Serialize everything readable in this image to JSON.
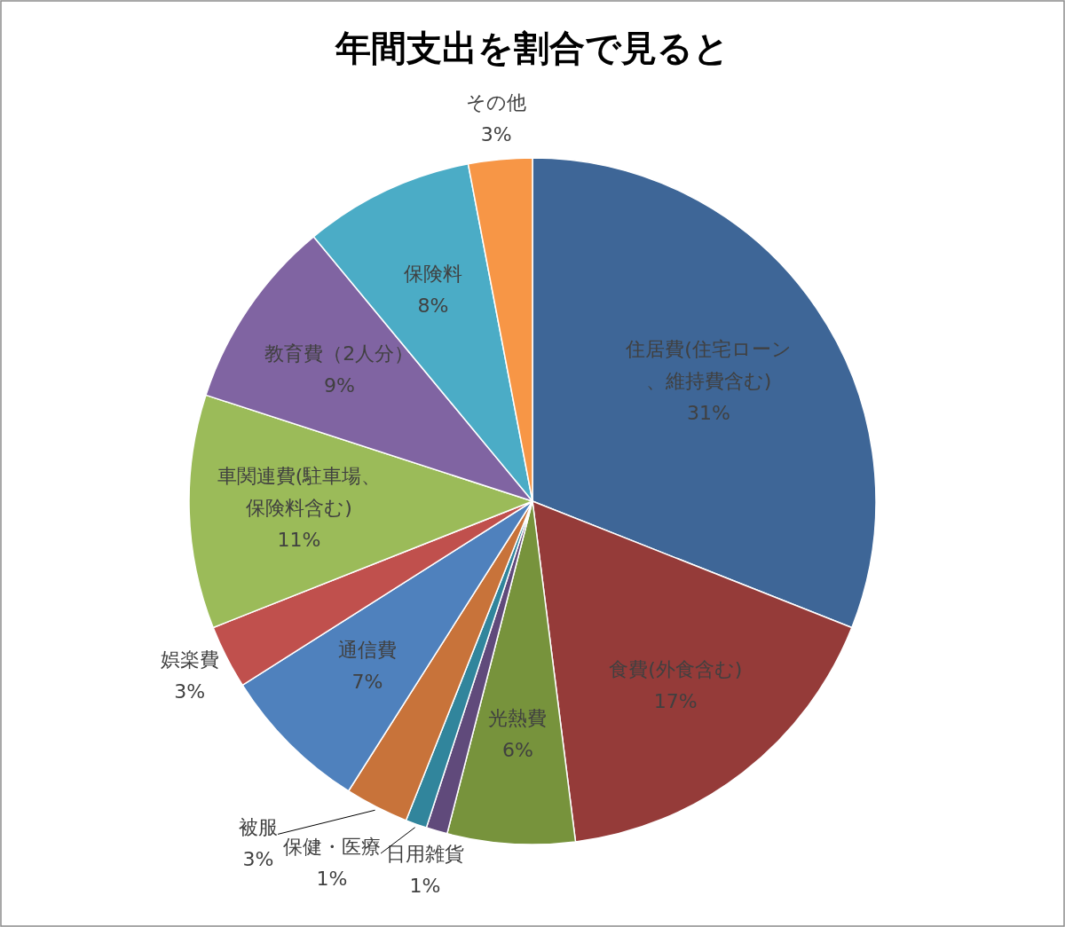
{
  "chart_data": {
    "type": "pie",
    "title": "年間支出を割合で見ると",
    "categories": [
      "住居費(住宅ローン、維持費含む)",
      "食費(外食含む)",
      "光熱費",
      "日用雑貨",
      "保健・医療",
      "被服",
      "通信費",
      "娯楽費",
      "車関連費(駐車場、保険料含む)",
      "教育費（2人分）",
      "保険料",
      "その他"
    ],
    "values": [
      31,
      17,
      6,
      1,
      1,
      3,
      7,
      3,
      11,
      9,
      8,
      3
    ],
    "value_labels": [
      "31%",
      "17%",
      "6%",
      "1%",
      "1%",
      "3%",
      "7%",
      "3%",
      "11%",
      "9%",
      "8%",
      "3%"
    ],
    "colors": [
      "#3e6697",
      "#953b39",
      "#77933c",
      "#604a7b",
      "#31859c",
      "#c8733a",
      "#4f81bd",
      "#c0504d",
      "#9bbb59",
      "#8064a2",
      "#4bacc6",
      "#f79646"
    ]
  }
}
